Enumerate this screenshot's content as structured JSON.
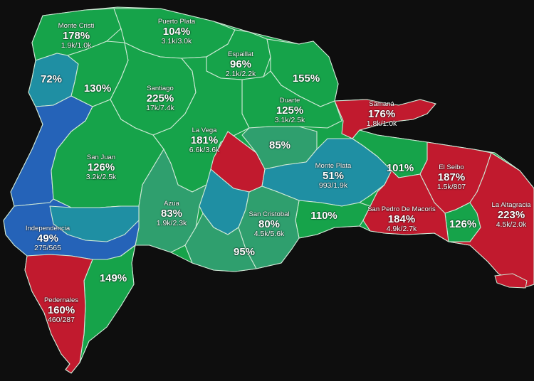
{
  "colors": {
    "background": "#0e0e0e",
    "green": "#16a34a",
    "teal_green": "#2f9f6e",
    "teal": "#1f8fa3",
    "blue": "#2563b8",
    "red": "#c11a2e",
    "border": "#cfe9d6"
  },
  "provinces": [
    {
      "name": "Monte Cristi",
      "pct": "178%",
      "counts": "1.9k/1.0k"
    },
    {
      "name": "Puerto Plata",
      "pct": "104%",
      "counts": "3.1k/3.0k"
    },
    {
      "name": "Espaillat",
      "pct": "96%",
      "counts": "2.1k/2.2k"
    },
    {
      "name": "",
      "pct": "72%",
      "counts": ""
    },
    {
      "name": "",
      "pct": "130%",
      "counts": ""
    },
    {
      "name": "Santiago",
      "pct": "225%",
      "counts": "17k/7.4k"
    },
    {
      "name": "",
      "pct": "155%",
      "counts": ""
    },
    {
      "name": "Duarte",
      "pct": "125%",
      "counts": "3.1k/2.5k"
    },
    {
      "name": "Samaná",
      "pct": "176%",
      "counts": "1.8k/1.0k"
    },
    {
      "name": "La Vega",
      "pct": "181%",
      "counts": "6.6k/3.6k"
    },
    {
      "name": "",
      "pct": "85%",
      "counts": ""
    },
    {
      "name": "San Juan",
      "pct": "126%",
      "counts": "3.2k/2.5k"
    },
    {
      "name": "Monte Plata",
      "pct": "51%",
      "counts": "993/1.9k"
    },
    {
      "name": "",
      "pct": "101%",
      "counts": ""
    },
    {
      "name": "El Seibo",
      "pct": "187%",
      "counts": "1.5k/807"
    },
    {
      "name": "Azua",
      "pct": "83%",
      "counts": "1.9k/2.3k"
    },
    {
      "name": "San Cristobal",
      "pct": "80%",
      "counts": "4.5k/5.6k"
    },
    {
      "name": "",
      "pct": "110%",
      "counts": ""
    },
    {
      "name": "San Pedro De Macoris",
      "pct": "184%",
      "counts": "4.9k/2.7k"
    },
    {
      "name": "",
      "pct": "126%",
      "counts": ""
    },
    {
      "name": "La Altagracia",
      "pct": "223%",
      "counts": "4.5k/2.0k"
    },
    {
      "name": "Independencia",
      "pct": "49%",
      "counts": "275/565"
    },
    {
      "name": "",
      "pct": "95%",
      "counts": ""
    },
    {
      "name": "",
      "pct": "149%",
      "counts": ""
    },
    {
      "name": "Pedernales",
      "pct": "160%",
      "counts": "460/287"
    }
  ]
}
